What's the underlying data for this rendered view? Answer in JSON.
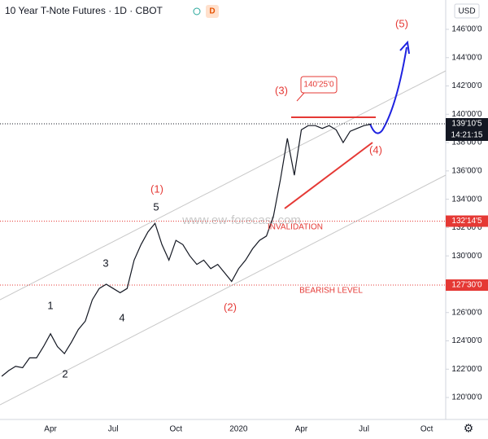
{
  "chart_data": {
    "type": "line",
    "title": "10 Year T-Note Futures · 1D · CBOT",
    "badge": "D",
    "currency": "USD",
    "categories": [
      null,
      null,
      null,
      null,
      null,
      null,
      null,
      "Apr",
      null,
      null,
      null,
      null,
      null,
      null,
      null,
      null,
      "Jul",
      null,
      null,
      null,
      null,
      null,
      null,
      null,
      null,
      "Oct",
      null,
      null,
      null,
      null,
      null,
      null,
      null,
      null,
      "2020",
      null,
      null,
      null,
      null,
      null,
      null,
      null,
      null,
      "Apr",
      null,
      null,
      null,
      null,
      null,
      null,
      null,
      null,
      "Jul",
      null,
      null,
      null,
      null,
      null,
      null,
      null,
      null,
      "Oct",
      null,
      null
    ],
    "values": [
      121.5,
      121.9,
      122.2,
      122.1,
      122.8,
      122.8,
      123.6,
      124.5,
      123.6,
      123.1,
      123.9,
      124.8,
      125.4,
      126.9,
      127.7,
      128.0,
      127.7,
      127.4,
      127.7,
      129.7,
      130.8,
      131.7,
      132.3,
      130.8,
      129.7,
      131.1,
      130.8,
      130.0,
      129.4,
      129.7,
      129.1,
      129.4,
      128.8,
      128.2,
      129.1,
      129.7,
      130.5,
      131.1,
      131.4,
      132.8,
      135.4,
      138.3,
      135.7,
      138.9,
      139.2,
      139.2,
      139.0,
      139.2,
      138.9,
      138.0,
      138.8,
      139.0,
      139.2,
      139.3,
      null,
      null,
      null,
      null,
      null,
      null,
      null,
      null,
      null,
      null
    ],
    "color": "#131722",
    "ylim": [
      118.45,
      148.07
    ],
    "yticks": [
      {
        "value": 120,
        "label": "120'00'0"
      },
      {
        "value": 122,
        "label": "122'00'0"
      },
      {
        "value": 124,
        "label": "124'00'0"
      },
      {
        "value": 126,
        "label": "126'00'0"
      },
      {
        "value": 128,
        "label": "128'00'0"
      },
      {
        "value": 130,
        "label": "130'00'0"
      },
      {
        "value": 132,
        "label": "132'00'0"
      },
      {
        "value": 134,
        "label": "134'00'0"
      },
      {
        "value": 136,
        "label": "136'00'0"
      },
      {
        "value": 138,
        "label": "138'00'0"
      },
      {
        "value": 140,
        "label": "140'00'0"
      },
      {
        "value": 142,
        "label": "142'00'0"
      },
      {
        "value": 144,
        "label": "144'00'0"
      },
      {
        "value": 146,
        "label": "146'00'0"
      }
    ],
    "levels": [
      {
        "value": 139.328125,
        "label": "139'10'5",
        "color": "#131722"
      },
      {
        "value": 132.453125,
        "label": "132'14'5",
        "color": "#e53935"
      },
      {
        "value": 127.9375,
        "label": "127'30'0",
        "color": "#e53935"
      }
    ],
    "countdown": "14:21:15",
    "annotations": [
      {
        "text": "(5)",
        "color": "#e53935"
      },
      {
        "text": "(3)",
        "color": "#e53935"
      },
      {
        "text": "(1)",
        "color": "#e53935"
      },
      {
        "text": "(2)",
        "color": "#e53935"
      },
      {
        "text": "(4)",
        "color": "#e53935"
      },
      {
        "text": "5",
        "color": "#131722"
      },
      {
        "text": "3",
        "color": "#131722"
      },
      {
        "text": "1",
        "color": "#131722"
      },
      {
        "text": "4",
        "color": "#131722"
      },
      {
        "text": "2",
        "color": "#131722"
      },
      {
        "text": "INVALIDATION",
        "color": "#e53935"
      },
      {
        "text": "BEARISH LEVEL",
        "color": "#e53935"
      },
      {
        "text": "140'25'0",
        "color": "#e53935"
      }
    ],
    "watermark": "www.ew-forecast.com"
  }
}
